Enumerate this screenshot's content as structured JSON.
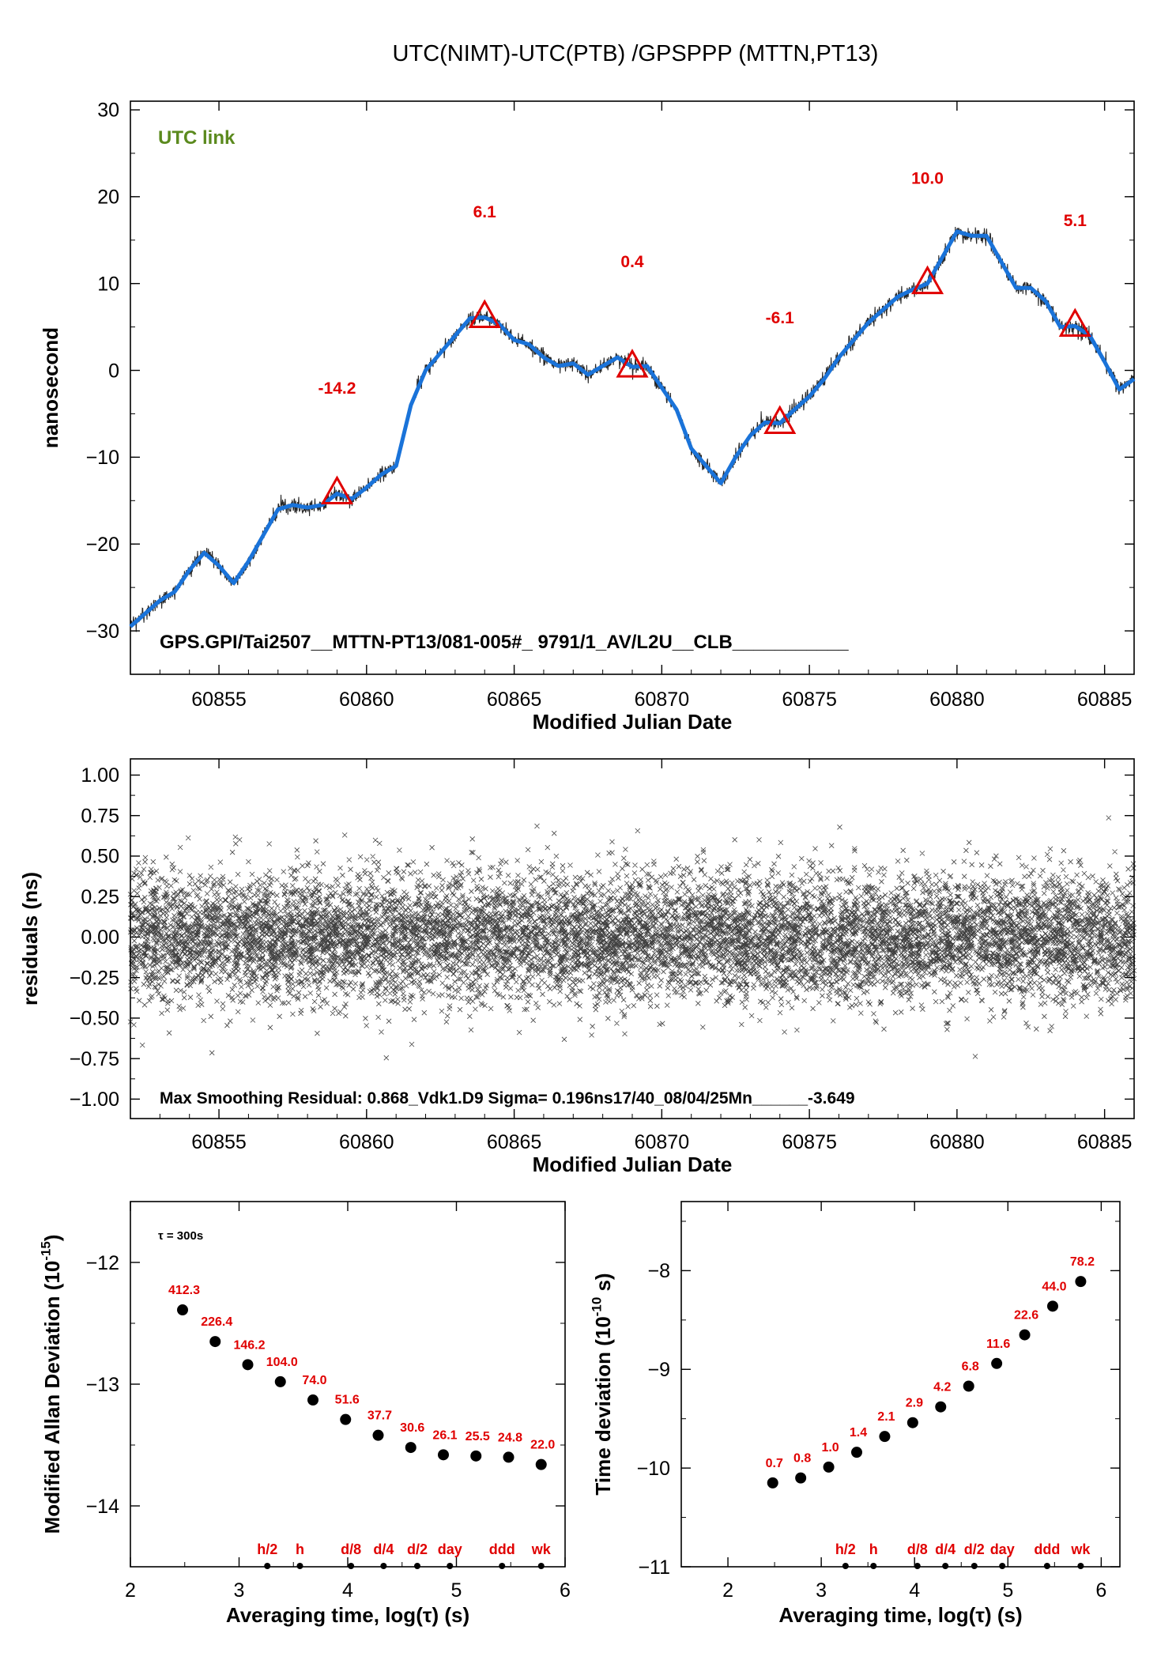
{
  "figure_title": "UTC(NIMT)-UTC(PTB)  /GPSPPP  (MTTN,PT13)",
  "colors": {
    "axis": "#000000",
    "fit": "#1a73d9",
    "marker": "#e00000",
    "label_red": "#e00000",
    "link_label": "#5b8a1e",
    "points": "#000000"
  },
  "chart_data": [
    {
      "id": "top",
      "type": "line",
      "xlabel": "Modified Julian Date",
      "ylabel": "nanosecond",
      "xlim": [
        60852,
        60886
      ],
      "ylim": [
        -35,
        31
      ],
      "xticks": [
        60855,
        60860,
        60865,
        60870,
        60875,
        60880,
        60885
      ],
      "yticks": [
        30,
        20,
        10,
        0,
        -10,
        -20,
        -30
      ],
      "tag": "UTC link",
      "footer": "GPS.GPI/Tai2507__MTTN-PT13/081-005#_  9791/1_AV/L2U__CLB___________",
      "curve": {
        "x": [
          60852,
          60852.5,
          60853,
          60853.5,
          60854,
          60854.5,
          60855,
          60855.5,
          60856,
          60856.5,
          60857,
          60857.5,
          60858,
          60858.5,
          60859,
          60859.5,
          60860,
          60860.5,
          60861,
          60861.5,
          60862,
          60862.5,
          60863,
          60863.5,
          60864,
          60864.5,
          60865,
          60865.5,
          60866,
          60866.5,
          60867,
          60867.5,
          60868,
          60868.5,
          60869,
          60869.5,
          60870,
          60870.5,
          60871,
          60871.5,
          60872,
          60872.5,
          60873,
          60873.5,
          60874,
          60874.5,
          60875,
          60875.5,
          60876,
          60876.5,
          60877,
          60877.5,
          60878,
          60878.5,
          60879,
          60879.5,
          60880,
          60880.5,
          60881,
          60881.5,
          60882,
          60882.5,
          60883,
          60883.5,
          60884,
          60884.5,
          60885,
          60885.5,
          60886
        ],
        "y": [
          -29.5,
          -28,
          -26.5,
          -25.5,
          -23,
          -21,
          -22.5,
          -24.5,
          -22,
          -19,
          -16,
          -15.5,
          -15.8,
          -15.5,
          -14.2,
          -14.8,
          -13.5,
          -12,
          -11,
          -4,
          0,
          2,
          4,
          6,
          6.1,
          5.3,
          3.5,
          3,
          1.5,
          0.5,
          0.8,
          -0.5,
          0.5,
          1.5,
          0.4,
          0.5,
          -2,
          -4.5,
          -9,
          -11,
          -13,
          -10,
          -7.5,
          -6,
          -6.1,
          -4.5,
          -3,
          -1,
          1.5,
          3.5,
          5.5,
          7,
          8.5,
          9.3,
          10,
          13,
          16,
          15.5,
          15.5,
          12.5,
          9.5,
          9.5,
          8,
          5,
          5.1,
          4,
          1,
          -2.2,
          -1
        ]
      },
      "markers": [
        {
          "x": 60859,
          "y": -14.2,
          "label": "-14.2"
        },
        {
          "x": 60864,
          "y": 6.1,
          "label": "6.1"
        },
        {
          "x": 60869,
          "y": 0.4,
          "label": "0.4"
        },
        {
          "x": 60874,
          "y": -6.1,
          "label": "-6.1"
        },
        {
          "x": 60879,
          "y": 10.0,
          "label": "10.0"
        },
        {
          "x": 60884,
          "y": 5.1,
          "label": "5.1"
        }
      ]
    },
    {
      "id": "middle",
      "type": "scatter",
      "xlabel": "Modified Julian Date",
      "ylabel": "residuals (ns)",
      "xlim": [
        60852,
        60886
      ],
      "ylim": [
        -1.12,
        1.1
      ],
      "xticks": [
        60855,
        60860,
        60865,
        60870,
        60875,
        60880,
        60885
      ],
      "yticks": [
        "1.00",
        "0.75",
        "0.50",
        "0.25",
        "0.00",
        "−0.25",
        "−0.50",
        "−0.75",
        "−1.00"
      ],
      "ytick_values": [
        1.0,
        0.75,
        0.5,
        0.25,
        0.0,
        -0.25,
        -0.5,
        -0.75,
        -1.0
      ],
      "noise_sigma": 0.196,
      "max_residual": 0.868,
      "footer": "Max Smoothing Residual: 0.868_Vdk1.D9  Sigma= 0.196ns17/40_08/04/25Mn______-3.649"
    },
    {
      "id": "mdev",
      "type": "scatter",
      "xlabel": "Averaging time, log(τ) (s)",
      "ylabel": "Modified Allan Deviation (10",
      "ylabel_sup": "-15",
      "ylabel_end": ")",
      "xlim": [
        2,
        6
      ],
      "ylim": [
        -14.5,
        -11.5
      ],
      "xticks": [
        2,
        3,
        4,
        5,
        6
      ],
      "yticks": [
        -12,
        -13,
        -14
      ],
      "tau_note": "τ = 300s",
      "points": [
        {
          "x": 2.48,
          "y": -12.39,
          "label": "412.3"
        },
        {
          "x": 2.78,
          "y": -12.65,
          "label": "226.4"
        },
        {
          "x": 3.08,
          "y": -12.84,
          "label": "146.2"
        },
        {
          "x": 3.38,
          "y": -12.98,
          "label": "104.0"
        },
        {
          "x": 3.68,
          "y": -13.13,
          "label": "74.0"
        },
        {
          "x": 3.98,
          "y": -13.29,
          "label": "51.6"
        },
        {
          "x": 4.28,
          "y": -13.42,
          "label": "37.7"
        },
        {
          "x": 4.58,
          "y": -13.52,
          "label": "30.6"
        },
        {
          "x": 4.88,
          "y": -13.58,
          "label": "26.1"
        },
        {
          "x": 5.18,
          "y": -13.59,
          "label": "25.5"
        },
        {
          "x": 5.48,
          "y": -13.6,
          "label": "24.8"
        },
        {
          "x": 5.78,
          "y": -13.66,
          "label": "22.0"
        }
      ],
      "marks": [
        {
          "x": 3.26,
          "label": "h/2"
        },
        {
          "x": 3.56,
          "label": "h"
        },
        {
          "x": 4.03,
          "label": "d/8"
        },
        {
          "x": 4.33,
          "label": "d/4"
        },
        {
          "x": 4.64,
          "label": "d/2"
        },
        {
          "x": 4.94,
          "label": "day"
        },
        {
          "x": 5.42,
          "label": "ddd"
        },
        {
          "x": 5.78,
          "label": "wk"
        }
      ]
    },
    {
      "id": "tdev",
      "type": "scatter",
      "xlabel": "Averaging time, log(τ) (s)",
      "ylabel": "Time deviation (10",
      "ylabel_sup": "-10",
      "ylabel_end": " s)",
      "xlim": [
        1.5,
        6.2
      ],
      "ylim": [
        -11,
        -7.3
      ],
      "xticks": [
        2,
        3,
        4,
        5,
        6
      ],
      "yticks": [
        -8,
        -9,
        -10,
        -11
      ],
      "points": [
        {
          "x": 2.48,
          "y": -10.15,
          "label": "0.7"
        },
        {
          "x": 2.78,
          "y": -10.1,
          "label": "0.8"
        },
        {
          "x": 3.08,
          "y": -9.99,
          "label": "1.0"
        },
        {
          "x": 3.38,
          "y": -9.84,
          "label": "1.4"
        },
        {
          "x": 3.68,
          "y": -9.68,
          "label": "2.1"
        },
        {
          "x": 3.98,
          "y": -9.54,
          "label": "2.9"
        },
        {
          "x": 4.28,
          "y": -9.38,
          "label": "4.2"
        },
        {
          "x": 4.58,
          "y": -9.17,
          "label": "6.8"
        },
        {
          "x": 4.88,
          "y": -8.94,
          "label": "11.6"
        },
        {
          "x": 5.18,
          "y": -8.65,
          "label": "22.6"
        },
        {
          "x": 5.48,
          "y": -8.36,
          "label": "44.0"
        },
        {
          "x": 5.78,
          "y": -8.11,
          "label": "78.2"
        }
      ],
      "marks": [
        {
          "x": 3.26,
          "label": "h/2"
        },
        {
          "x": 3.56,
          "label": "h"
        },
        {
          "x": 4.03,
          "label": "d/8"
        },
        {
          "x": 4.33,
          "label": "d/4"
        },
        {
          "x": 4.64,
          "label": "d/2"
        },
        {
          "x": 4.94,
          "label": "day"
        },
        {
          "x": 5.42,
          "label": "ddd"
        },
        {
          "x": 5.78,
          "label": "wk"
        }
      ]
    }
  ]
}
